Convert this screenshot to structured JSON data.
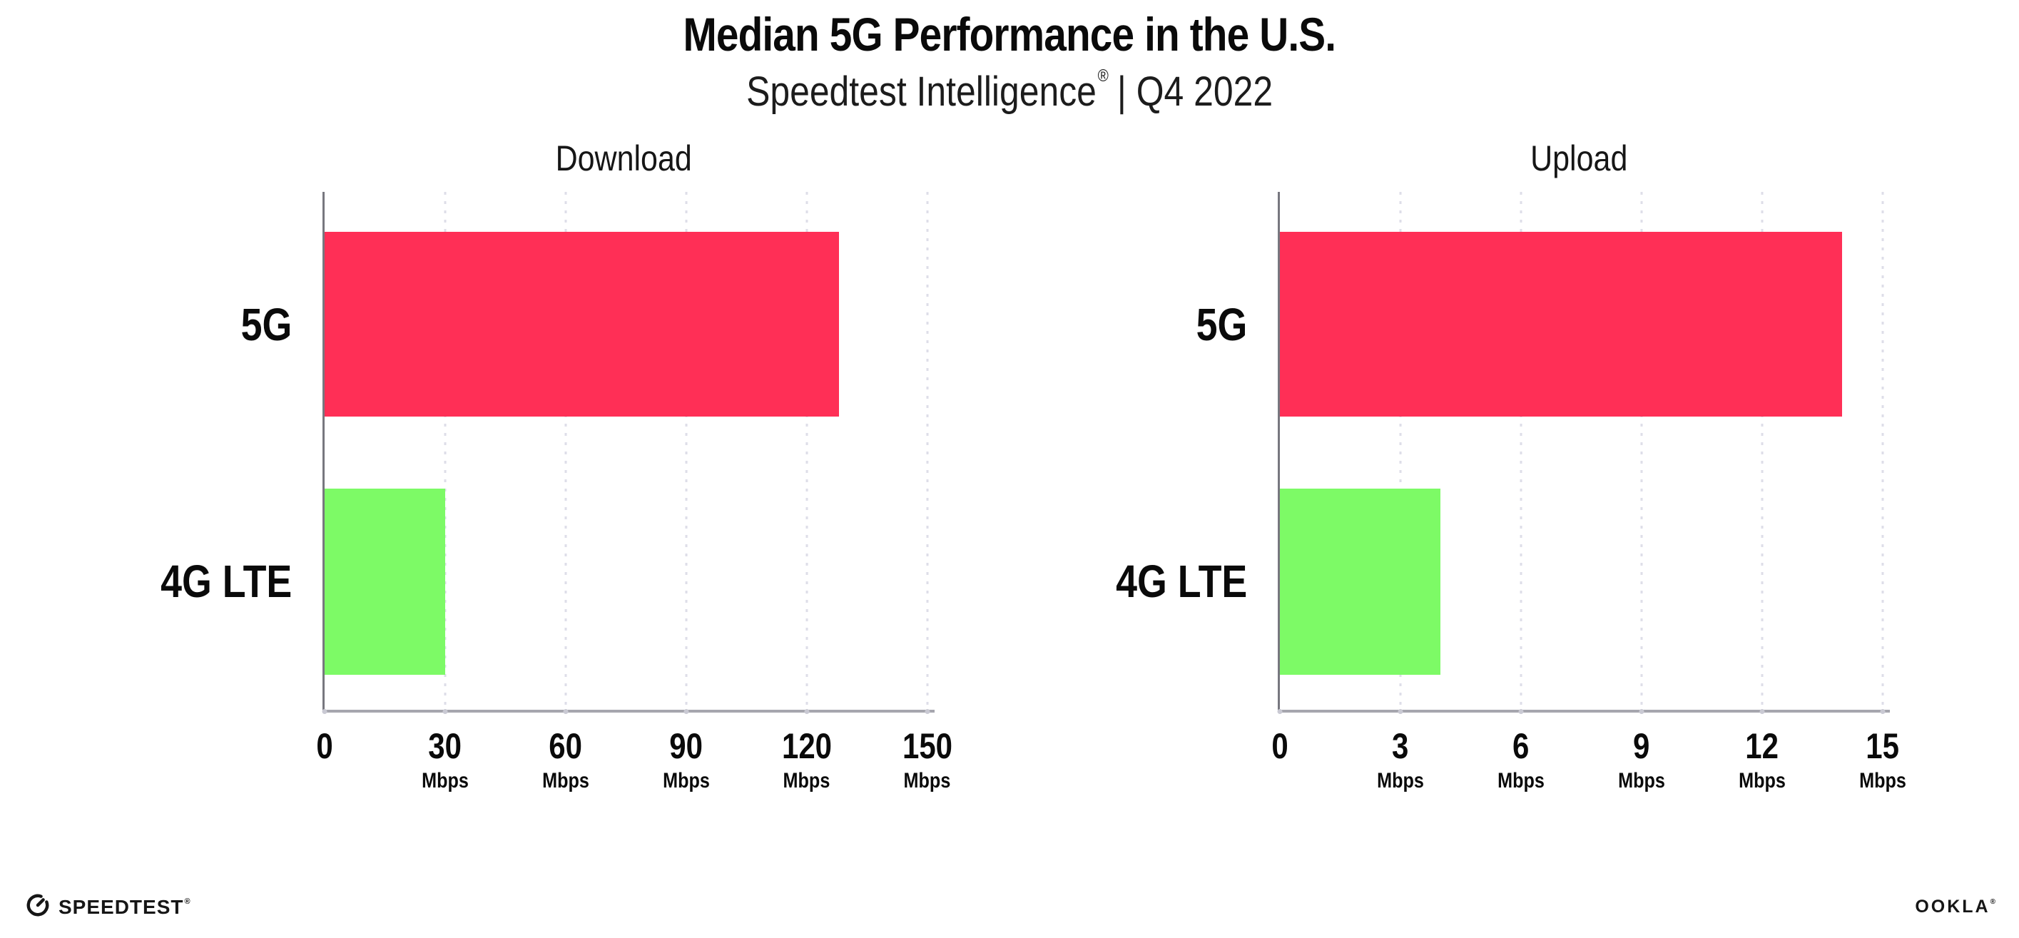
{
  "header": {
    "title": "Median 5G Performance in the U.S.",
    "subtitle_brand": "Speedtest Intelligence",
    "subtitle_reg": "®",
    "subtitle_period": "| Q4 2022"
  },
  "chart_data": [
    {
      "type": "bar",
      "orientation": "horizontal",
      "title": "Download",
      "categories": [
        "5G",
        "4G LTE"
      ],
      "values": [
        128,
        30
      ],
      "unit": "Mbps",
      "xlabel": "",
      "ylabel": "",
      "xlim": [
        0,
        150
      ],
      "xticks": [
        0,
        30,
        60,
        90,
        120,
        150
      ],
      "grid": "dotted-vertical-gridlines",
      "legend": "none",
      "bar_colors": [
        "#FF2F56",
        "#7DFA66"
      ]
    },
    {
      "type": "bar",
      "orientation": "horizontal",
      "title": "Upload",
      "categories": [
        "5G",
        "4G LTE"
      ],
      "values": [
        14,
        4
      ],
      "unit": "Mbps",
      "xlabel": "",
      "ylabel": "",
      "xlim": [
        0,
        15
      ],
      "xticks": [
        0,
        3,
        6,
        9,
        12,
        15
      ],
      "grid": "dotted-vertical-gridlines",
      "legend": "none",
      "bar_colors": [
        "#FF2F56",
        "#7DFA66"
      ]
    }
  ],
  "colors": {
    "bar_5g": "#FF2F56",
    "bar_4g_lte": "#7DFA66",
    "gridline": "#DEDEE8",
    "y_axis_line": "#77777F",
    "x_axis_line": "#A6A6AE",
    "tick_dot": "#C9C9D3",
    "text": "#0A0A0A"
  },
  "footer": {
    "speedtest_label": "SPEEDTEST",
    "speedtest_reg": "®",
    "ookla_label": "OOKLA",
    "ookla_reg": "®"
  }
}
